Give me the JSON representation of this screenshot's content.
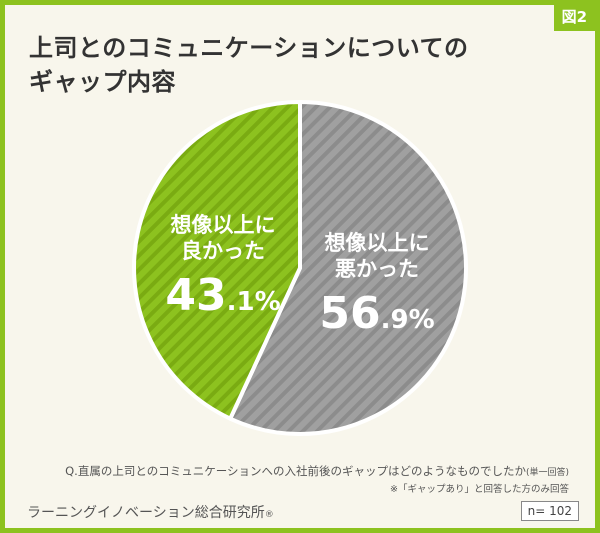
{
  "figure_tag": "図2",
  "title": {
    "line1": "上司とのコミュニケーションについての",
    "line2": "ギャップ内容"
  },
  "chart_data": {
    "type": "pie",
    "title": "上司とのコミュニケーションについてのギャップ内容",
    "slices": [
      {
        "label_line1": "想像以上に",
        "label_line2": "悪かった",
        "value": 56.9,
        "value_int": "56",
        "value_dec": ".9",
        "unit": "%",
        "color": "#a0a0a0",
        "stripe": "#8c8c8c"
      },
      {
        "label_line1": "想像以上に",
        "label_line2": "良かった",
        "value": 43.1,
        "value_int": "43",
        "value_dec": ".1",
        "unit": "%",
        "color": "#8dc21f",
        "stripe": "#7aab12"
      }
    ]
  },
  "question": "Q.直属の上司とのコミュニケーションへの入社前後のギャップはどのようなものでしたか",
  "question_suffix": "(単一回答)",
  "note": "※「ギャップあり」と回答した方のみ回答",
  "source": "ラーニングイノベーション総合研究所",
  "source_mark": "®",
  "sample": "n= 102"
}
